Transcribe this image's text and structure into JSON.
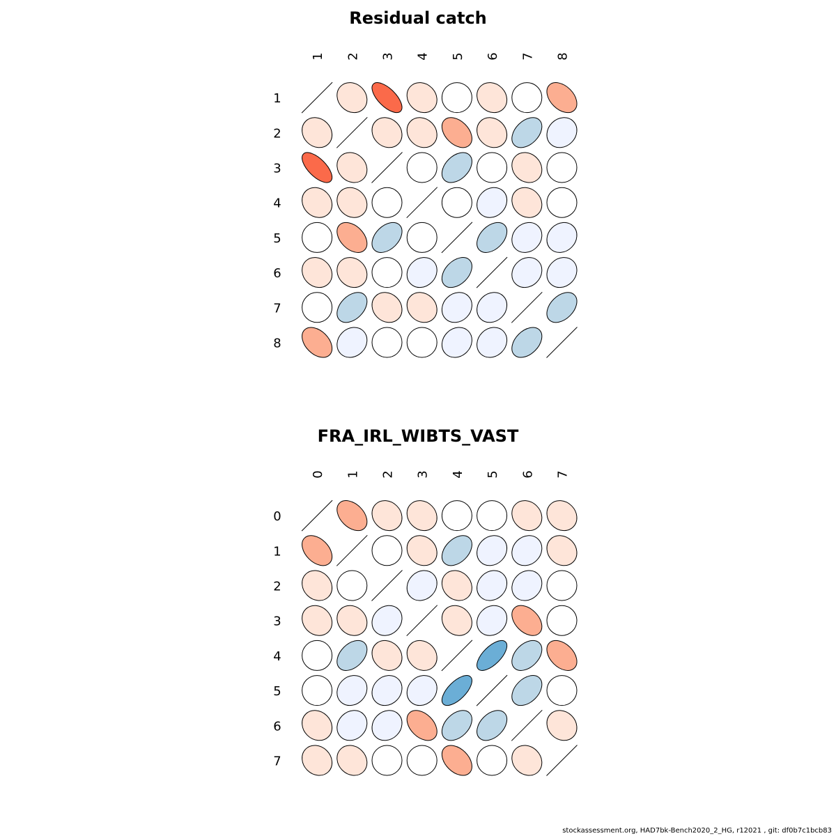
{
  "footer": "stockassessment.org, HAD7bk-Bench2020_2_HG, r12021 , git: df0b7c1bcb83",
  "colors": {
    "strong_pos": "#fb6a4a",
    "mid_pos": "#fcae91",
    "weak_pos": "#fee5d9",
    "neutral": "#ffffff",
    "weak_neg": "#eff3ff",
    "mid_neg": "#bdd7e7",
    "strong_neg": "#6baed6"
  },
  "chart_data": [
    {
      "type": "heatmap",
      "title": "Residual catch",
      "labels": [
        "1",
        "2",
        "3",
        "4",
        "5",
        "6",
        "7",
        "8"
      ],
      "matrix": [
        [
          1,
          0.15,
          0.65,
          0.15,
          0,
          0.15,
          0,
          0.4
        ],
        [
          0.15,
          1,
          0.15,
          0.15,
          0.4,
          0.15,
          -0.4,
          -0.15
        ],
        [
          0.65,
          0.15,
          1,
          0,
          -0.4,
          0,
          0.15,
          0
        ],
        [
          0.15,
          0.15,
          0,
          1,
          0,
          -0.15,
          0.15,
          0
        ],
        [
          0,
          0.4,
          -0.4,
          0,
          1,
          -0.4,
          -0.15,
          -0.15
        ],
        [
          0.15,
          0.15,
          0,
          -0.15,
          -0.4,
          1,
          -0.15,
          -0.15
        ],
        [
          0,
          -0.4,
          0.15,
          0.15,
          -0.15,
          -0.15,
          1,
          -0.4
        ],
        [
          0.4,
          -0.15,
          0,
          0,
          -0.15,
          -0.15,
          -0.4,
          1
        ]
      ]
    },
    {
      "type": "heatmap",
      "title": "FRA_IRL_WIBTS_VAST",
      "labels": [
        "0",
        "1",
        "2",
        "3",
        "4",
        "5",
        "6",
        "7"
      ],
      "matrix": [
        [
          1,
          0.4,
          0.15,
          0.15,
          0,
          0,
          0.15,
          0.15
        ],
        [
          0.4,
          1,
          0,
          0.15,
          -0.4,
          -0.15,
          -0.15,
          0.15
        ],
        [
          0.15,
          0,
          1,
          -0.15,
          0.15,
          -0.15,
          -0.15,
          0
        ],
        [
          0.15,
          0.15,
          -0.15,
          1,
          0.15,
          -0.15,
          0.4,
          0
        ],
        [
          0,
          -0.4,
          0.15,
          0.15,
          1,
          -0.65,
          -0.4,
          0.4
        ],
        [
          0,
          -0.15,
          -0.15,
          -0.15,
          -0.65,
          1,
          -0.4,
          0
        ],
        [
          0.15,
          -0.15,
          -0.15,
          0.4,
          -0.4,
          -0.4,
          1,
          0.15
        ],
        [
          0.15,
          0.15,
          0,
          0,
          0.4,
          0,
          0.15,
          1
        ]
      ]
    }
  ]
}
